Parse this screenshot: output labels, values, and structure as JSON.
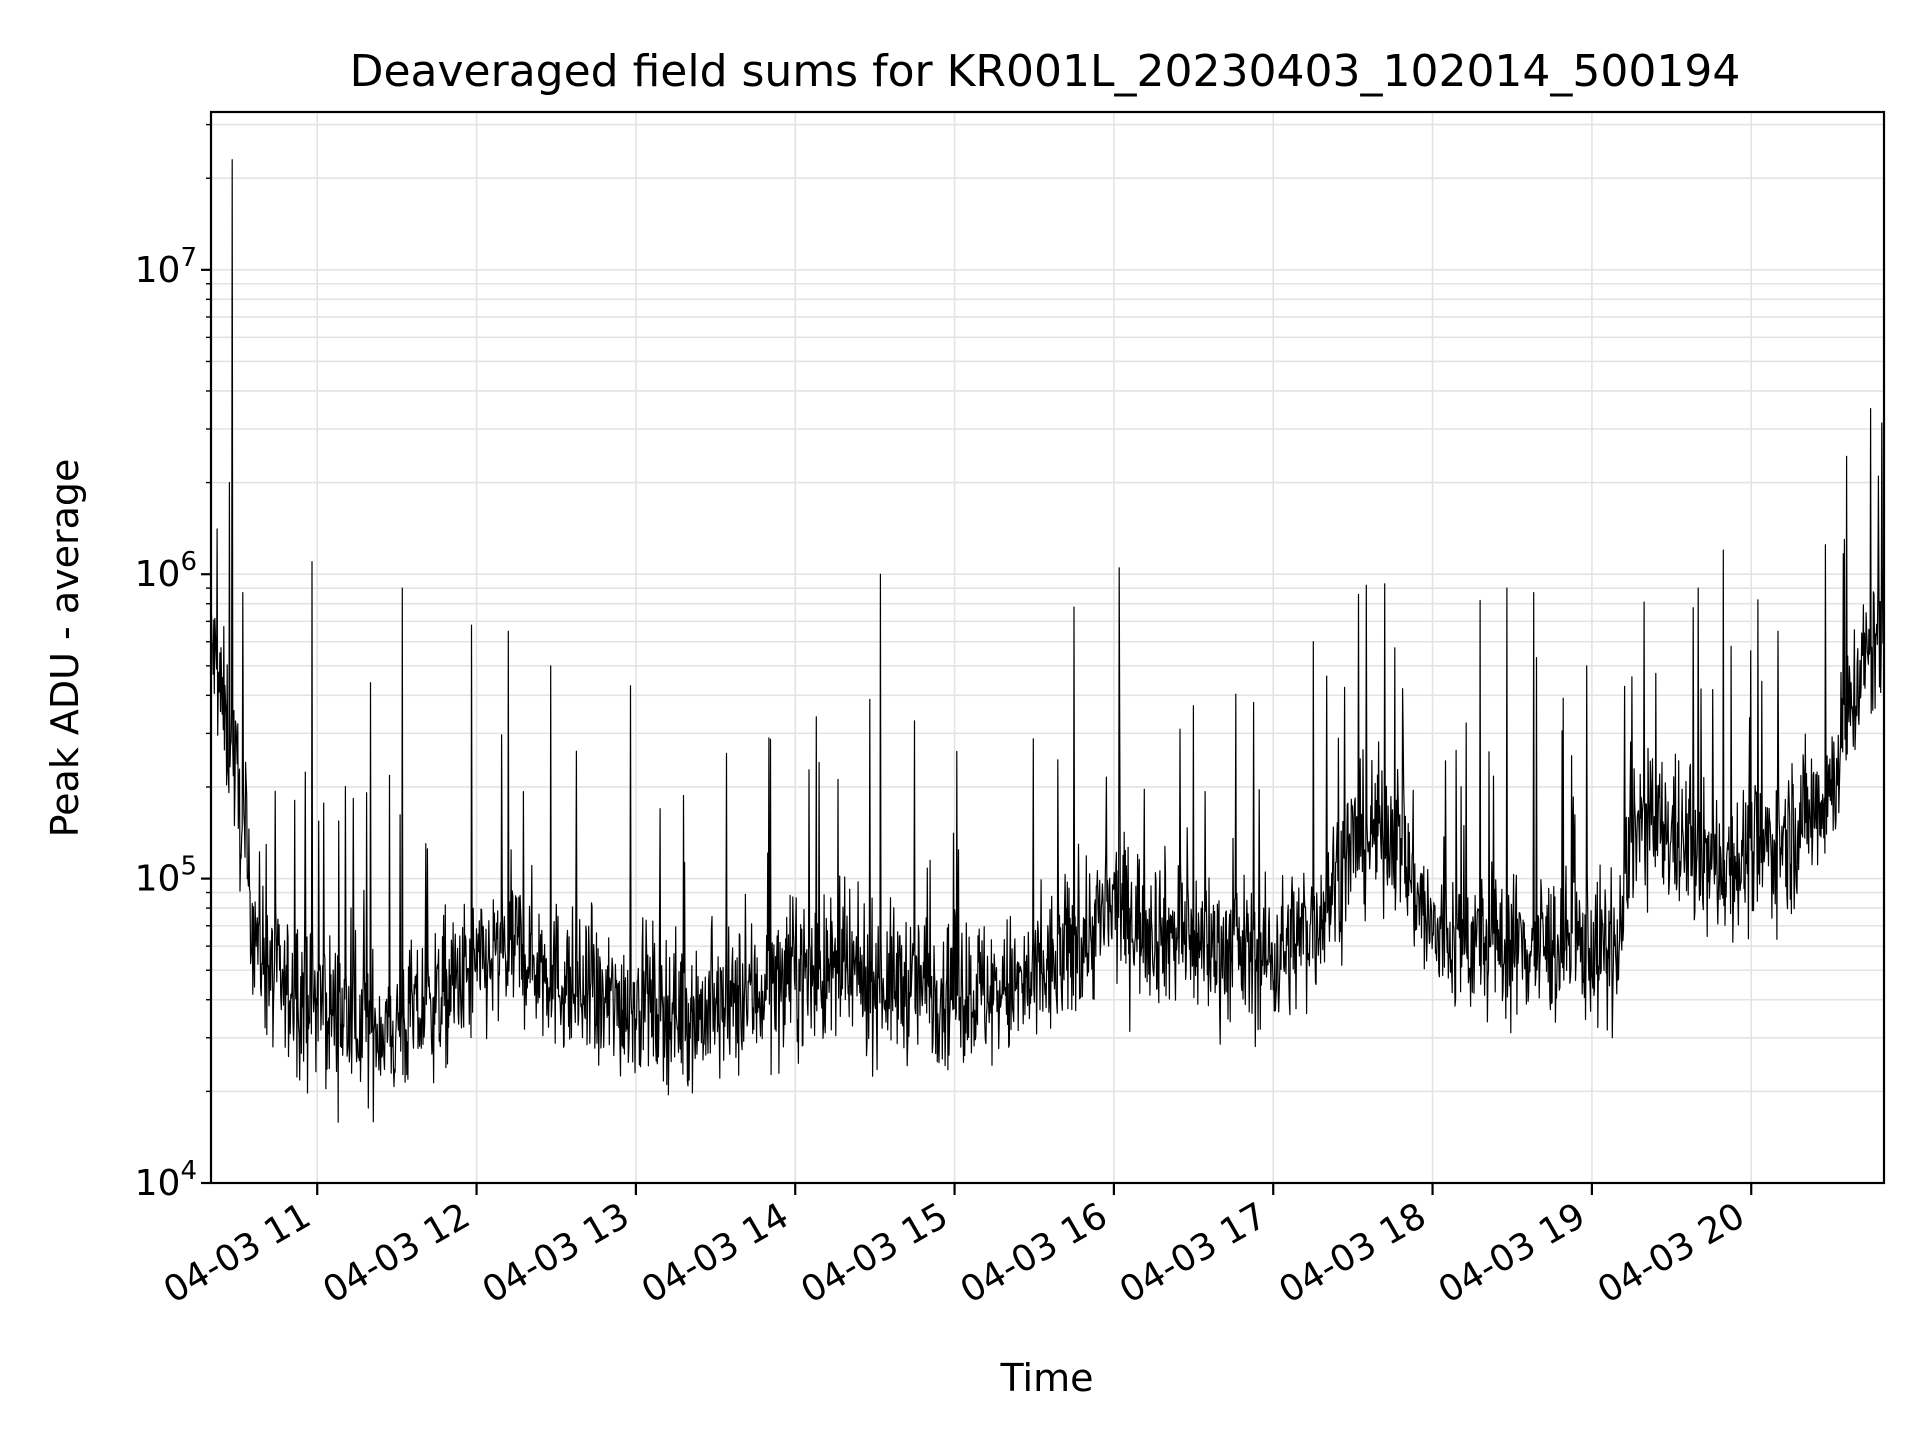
{
  "chart_data": {
    "type": "line",
    "title": "Deaveraged field sums for KR001L_20230403_102014_500194",
    "xlabel": "Time",
    "ylabel": "Peak ADU - average",
    "y_scale": "log",
    "ylim": [
      10000,
      33000000
    ],
    "xlim": [
      "2023-04-03 10:20",
      "2023-04-03 20:50"
    ],
    "grid": true,
    "line_color": "#000000",
    "x_ticks": [
      "2023-04-03 11:00",
      "2023-04-03 12:00",
      "2023-04-03 13:00",
      "2023-04-03 14:00",
      "2023-04-03 15:00",
      "2023-04-03 16:00",
      "2023-04-03 17:00",
      "2023-04-03 18:00",
      "2023-04-03 19:00",
      "2023-04-03 20:00"
    ],
    "x_tick_labels": [
      "04-03 11",
      "04-03 12",
      "04-03 13",
      "04-03 14",
      "04-03 15",
      "04-03 16",
      "04-03 17",
      "04-03 18",
      "04-03 19",
      "04-03 20"
    ],
    "y_ticks": [
      10000,
      100000,
      1000000,
      10000000
    ],
    "y_tick_labels": [
      {
        "base": "10",
        "exp": "4"
      },
      {
        "base": "10",
        "exp": "5"
      },
      {
        "base": "10",
        "exp": "6"
      },
      {
        "base": "10",
        "exp": "7"
      }
    ],
    "series": [
      {
        "x": [
          "2023-04-03 10:20",
          "2023-04-03 10:25",
          "2023-04-03 10:30",
          "2023-04-03 10:35",
          "2023-04-03 10:40",
          "2023-04-03 10:45",
          "2023-04-03 10:50",
          "2023-04-03 11:00",
          "2023-04-03 11:10",
          "2023-04-03 11:20",
          "2023-04-03 11:30",
          "2023-04-03 11:45",
          "2023-04-03 12:00",
          "2023-04-03 12:15",
          "2023-04-03 12:30",
          "2023-04-03 12:45",
          "2023-04-03 13:00",
          "2023-04-03 13:15",
          "2023-04-03 13:30",
          "2023-04-03 13:45",
          "2023-04-03 14:00",
          "2023-04-03 14:15",
          "2023-04-03 14:30",
          "2023-04-03 14:45",
          "2023-04-03 15:00",
          "2023-04-03 15:15",
          "2023-04-03 15:30",
          "2023-04-03 15:45",
          "2023-04-03 16:00",
          "2023-04-03 16:15",
          "2023-04-03 16:30",
          "2023-04-03 16:45",
          "2023-04-03 17:00",
          "2023-04-03 17:15",
          "2023-04-03 17:30",
          "2023-04-03 17:45",
          "2023-04-03 18:00",
          "2023-04-03 18:15",
          "2023-04-03 18:30",
          "2023-04-03 18:45",
          "2023-04-03 19:00",
          "2023-04-03 19:10",
          "2023-04-03 19:15",
          "2023-04-03 19:30",
          "2023-04-03 19:45",
          "2023-04-03 20:00",
          "2023-04-03 20:15",
          "2023-04-03 20:30",
          "2023-04-03 20:40",
          "2023-04-03 20:50"
        ],
        "y": [
          600000,
          350000,
          200000,
          80000,
          55000,
          45000,
          42000,
          40000,
          35000,
          33000,
          32000,
          40000,
          50000,
          60000,
          48000,
          38000,
          40000,
          37000,
          36000,
          42000,
          50000,
          48000,
          46000,
          45000,
          44000,
          42000,
          45000,
          60000,
          80000,
          70000,
          62000,
          58000,
          55000,
          70000,
          130000,
          150000,
          65000,
          62000,
          60000,
          60000,
          60000,
          55000,
          150000,
          140000,
          110000,
          120000,
          140000,
          200000,
          450000,
          700000
        ]
      }
    ],
    "spikes": [
      {
        "x": "2023-04-03 10:28",
        "y": 23000000
      },
      {
        "x": "2023-04-03 10:27",
        "y": 2000000
      },
      {
        "x": "2023-04-03 10:32",
        "y": 870000
      },
      {
        "x": "2023-04-03 10:58",
        "y": 1100000
      },
      {
        "x": "2023-04-03 11:20",
        "y": 440000
      },
      {
        "x": "2023-04-03 11:32",
        "y": 900000
      },
      {
        "x": "2023-04-03 11:58",
        "y": 680000
      },
      {
        "x": "2023-04-03 12:12",
        "y": 650000
      },
      {
        "x": "2023-04-03 12:28",
        "y": 500000
      },
      {
        "x": "2023-04-03 12:58",
        "y": 430000
      },
      {
        "x": "2023-04-03 13:50",
        "y": 290000
      },
      {
        "x": "2023-04-03 14:08",
        "y": 340000
      },
      {
        "x": "2023-04-03 14:32",
        "y": 1000000
      },
      {
        "x": "2023-04-03 14:45",
        "y": 330000
      },
      {
        "x": "2023-04-03 15:45",
        "y": 780000
      },
      {
        "x": "2023-04-03 16:02",
        "y": 1050000
      },
      {
        "x": "2023-04-03 16:30",
        "y": 370000
      },
      {
        "x": "2023-04-03 17:15",
        "y": 600000
      },
      {
        "x": "2023-04-03 17:35",
        "y": 920000
      },
      {
        "x": "2023-04-03 17:42",
        "y": 930000
      },
      {
        "x": "2023-04-03 18:18",
        "y": 820000
      },
      {
        "x": "2023-04-03 18:28",
        "y": 900000
      },
      {
        "x": "2023-04-03 18:38",
        "y": 870000
      },
      {
        "x": "2023-04-03 18:58",
        "y": 500000
      },
      {
        "x": "2023-04-03 19:15",
        "y": 460000
      },
      {
        "x": "2023-04-03 19:40",
        "y": 900000
      },
      {
        "x": "2023-04-03 20:10",
        "y": 650000
      },
      {
        "x": "2023-04-03 20:28",
        "y": 1250000
      },
      {
        "x": "2023-04-03 20:35",
        "y": 1300000
      },
      {
        "x": "2023-04-03 20:45",
        "y": 3500000
      },
      {
        "x": "2023-04-03 20:48",
        "y": 2100000
      }
    ]
  }
}
